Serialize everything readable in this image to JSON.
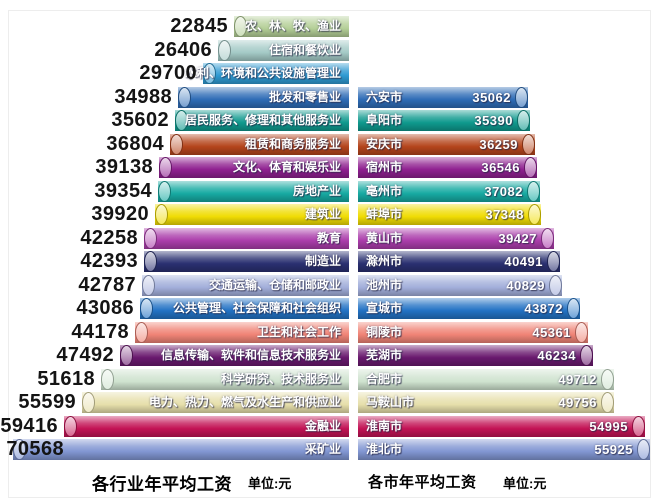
{
  "chart_data": [
    {
      "type": "bar",
      "orientation": "horizontal_left",
      "title": "各行业年平均工资",
      "unit_label": "单位:元",
      "categories": [
        "农、林、牧、渔业",
        "住宿和餐饮业",
        "水利、环境和公共设施管理业",
        "批发和零售业",
        "居民服务、修理和其他服务业",
        "租赁和商务服务业",
        "文化、体育和娱乐业",
        "房地产业",
        "建筑业",
        "教育",
        "制造业",
        "交通运输、仓储和邮政业",
        "公共管理、社会保障和社会组织",
        "卫生和社会工作",
        "信息传输、软件和信息技术服务业",
        "科学研究、技术服务业",
        "电力、热力、燃气及水生产和供应业",
        "金融业",
        "采矿业"
      ],
      "values": [
        22845,
        26406,
        29700,
        34988,
        35602,
        36804,
        39138,
        39354,
        39920,
        42258,
        42393,
        42787,
        43086,
        44178,
        47492,
        51618,
        55599,
        59416,
        70568
      ],
      "bar_colors": [
        "#b4cf97",
        "#a4cac6",
        "#2e9ad2",
        "#2e6cb6",
        "#0f9a8e",
        "#b5451c",
        "#8f2090",
        "#17aaa2",
        "#f0dc04",
        "#ab3dab",
        "#2a3071",
        "#a2aeda",
        "#2272c4",
        "#f08476",
        "#69196e",
        "#cfe3cf",
        "#e6dfab",
        "#c31355",
        "#8196d2"
      ],
      "value_labels_color": "#141414",
      "legend": "none",
      "gridlines": false
    },
    {
      "type": "bar",
      "orientation": "horizontal_right",
      "title": "各市年平均工资",
      "unit_label": "单位:元",
      "categories": [
        "六安市",
        "阜阳市",
        "安庆市",
        "宿州市",
        "亳州市",
        "蚌埠市",
        "黄山市",
        "滁州市",
        "池州市",
        "宣城市",
        "铜陵市",
        "芜湖市",
        "合肥市",
        "马鞍山市",
        "淮南市",
        "淮北市"
      ],
      "values": [
        35062,
        35390,
        36259,
        36546,
        37082,
        37348,
        39427,
        40491,
        40829,
        43872,
        45361,
        46234,
        49712,
        49756,
        54995,
        55925
      ],
      "bar_colors": [
        "#2e6cb6",
        "#0f9a8e",
        "#b5451c",
        "#8f2090",
        "#17aaa2",
        "#f0dc04",
        "#ab3dab",
        "#2a3071",
        "#a2aeda",
        "#2272c4",
        "#f08476",
        "#69196e",
        "#cfe3cf",
        "#e6dfab",
        "#c31355",
        "#8196d2"
      ],
      "value_labels_color": "#ffffff",
      "legend": "none",
      "gridlines": false
    }
  ]
}
